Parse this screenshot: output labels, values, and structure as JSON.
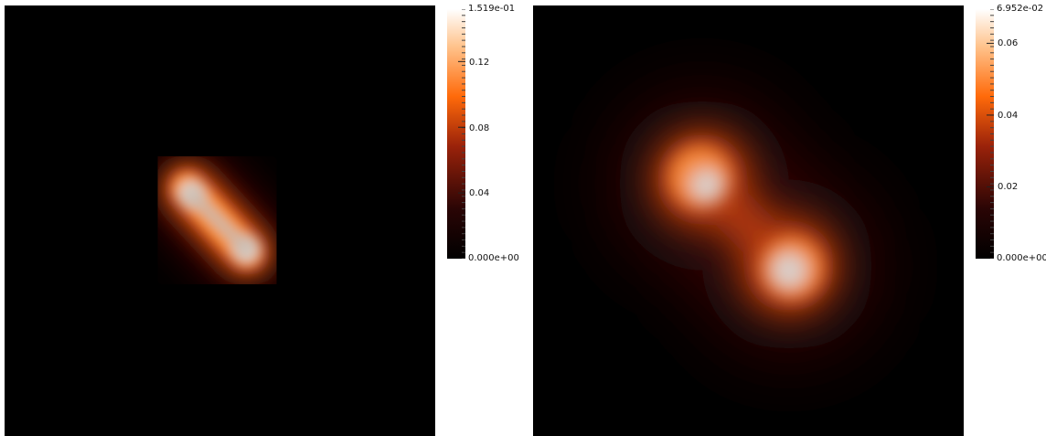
{
  "panels": [
    {
      "image": "density-field-render-compact",
      "colorbar": {
        "colormap": "black-body",
        "colors": [
          "#000000",
          "#5a0b0b",
          "#c0340a",
          "#ff7a0a",
          "#ffc38c",
          "#ffffff"
        ],
        "max_label": "1.519e-01",
        "min_label": "0.000e+00",
        "ticks": [
          "0.12",
          "0.08",
          "0.04"
        ],
        "tick_values": [
          0.12,
          0.08,
          0.04
        ],
        "max_value": 0.1519
      }
    },
    {
      "image": "density-field-render-separated",
      "colorbar": {
        "colormap": "black-body",
        "colors": [
          "#000000",
          "#5a0b0b",
          "#c0340a",
          "#ff7a0a",
          "#ffc38c",
          "#ffffff"
        ],
        "max_label": "6.952e-02",
        "min_label": "0.000e+00",
        "ticks": [
          "0.06",
          "0.04",
          "0.02"
        ],
        "tick_values": [
          0.06,
          0.04,
          0.02
        ],
        "max_value": 0.06952
      }
    }
  ]
}
